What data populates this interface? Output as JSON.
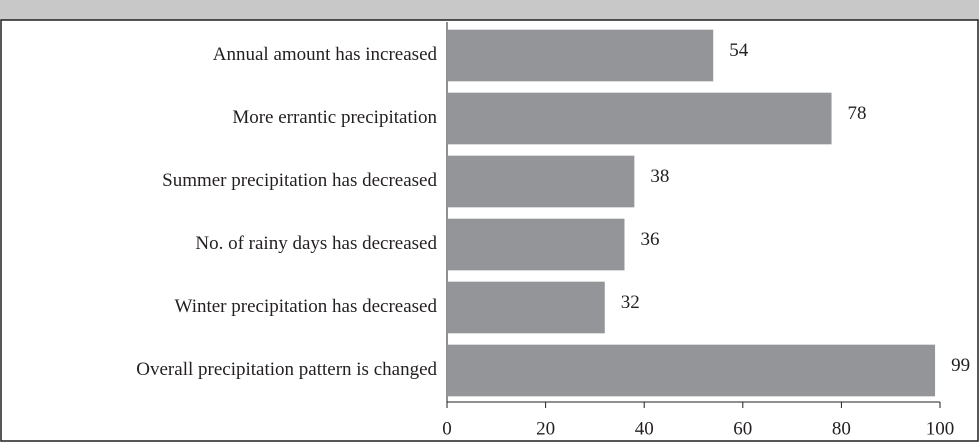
{
  "chart_data": {
    "type": "bar",
    "orientation": "horizontal",
    "categories": [
      "Annual amount has increased",
      "More errantic precipitation",
      "Summer precipitation has decreased",
      "No. of rainy days has decreased",
      "Winter precipitation has decreased",
      "Overall precipitation pattern is changed"
    ],
    "values": [
      54,
      78,
      38,
      36,
      32,
      99
    ],
    "color": "#939598",
    "xlim": [
      0,
      100
    ],
    "xticks": [
      0,
      20,
      40,
      60,
      80,
      100
    ],
    "grid": false
  }
}
